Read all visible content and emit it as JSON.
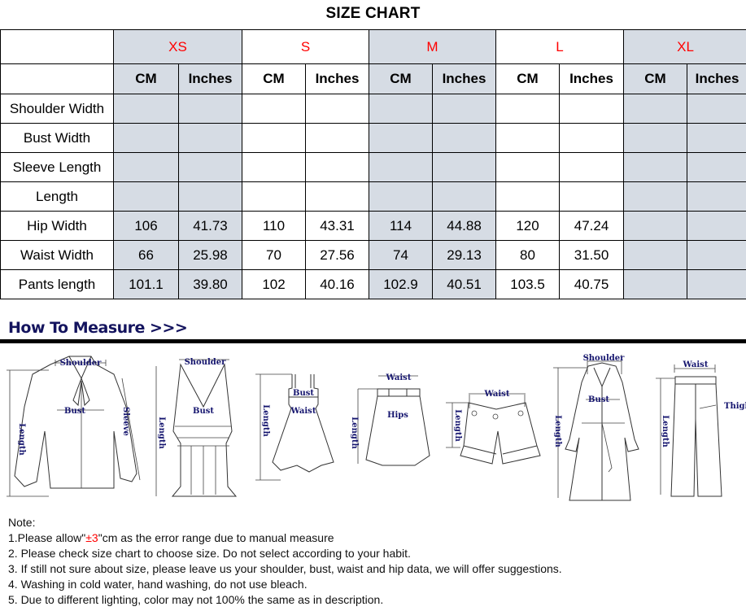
{
  "title": "SIZE CHART",
  "sizes": [
    "XS",
    "S",
    "M",
    "L",
    "XL"
  ],
  "units": [
    "CM",
    "Inches"
  ],
  "rows": [
    {
      "label": "Shoulder Width",
      "values": [
        "",
        "",
        "",
        "",
        "",
        "",
        "",
        "",
        "",
        ""
      ]
    },
    {
      "label": "Bust Width",
      "values": [
        "",
        "",
        "",
        "",
        "",
        "",
        "",
        "",
        "",
        ""
      ]
    },
    {
      "label": "Sleeve Length",
      "values": [
        "",
        "",
        "",
        "",
        "",
        "",
        "",
        "",
        "",
        ""
      ]
    },
    {
      "label": "Length",
      "values": [
        "",
        "",
        "",
        "",
        "",
        "",
        "",
        "",
        "",
        ""
      ]
    },
    {
      "label": "Hip Width",
      "values": [
        "106",
        "41.73",
        "110",
        "43.31",
        "114",
        "44.88",
        "120",
        "47.24",
        "",
        ""
      ]
    },
    {
      "label": "Waist Width",
      "values": [
        "66",
        "25.98",
        "70",
        "27.56",
        "74",
        "29.13",
        "80",
        "31.50",
        "",
        ""
      ]
    },
    {
      "label": "Pants length",
      "values": [
        "101.1",
        "39.80",
        "102",
        "40.16",
        "102.9",
        "40.51",
        "103.5",
        "40.75",
        "",
        ""
      ]
    }
  ],
  "colors": {
    "size_label": "#ff0000",
    "shaded_column": "#d6dce4",
    "measure_label": "#14146e"
  },
  "how_to_measure": {
    "heading": "How To Measure >>>",
    "blouse": {
      "shoulder": "Shoulder",
      "bust": "Bust",
      "sleeve": "Sleeve",
      "length": "Length"
    },
    "tank": {
      "shoulder": "Shoulder",
      "bust": "Bust",
      "length": "Length"
    },
    "dress": {
      "bust": "Bust",
      "waist": "Waist",
      "length": "Length"
    },
    "skirt": {
      "waist": "Waist",
      "hips": "Hips",
      "length": "Length"
    },
    "shorts": {
      "waist": "Waist",
      "length": "Length"
    },
    "coat": {
      "shoulder": "Shoulder",
      "bust": "Bust",
      "length": "Length"
    },
    "jeans": {
      "waist": "Waist",
      "thigh": "Thigh",
      "length": "Length"
    }
  },
  "notes": {
    "heading": "Note:",
    "n1_pre": "1.Please allow\"",
    "n1_red": "±3",
    "n1_post": "\"cm as the error range due to manual measure",
    "n2": "2. Please check size chart to choose size. Do not select according to your habit.",
    "n3": "3. If still not sure about size, please leave us your shoulder, bust, waist and hip data, we will offer suggestions.",
    "n4": "4. Washing in cold water, hand washing, do not use bleach.",
    "n5": "5. Due to different lighting, color may not 100% the same as in description."
  }
}
